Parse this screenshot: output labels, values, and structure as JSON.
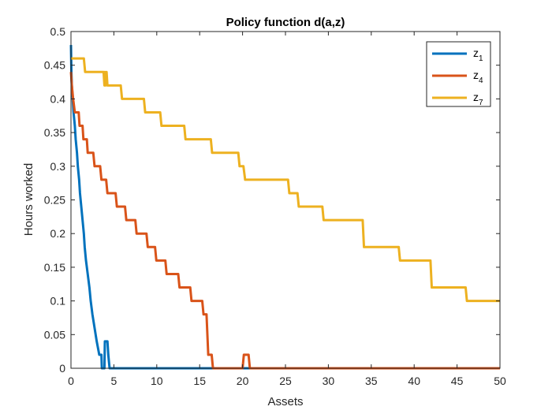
{
  "chart_data": {
    "type": "line",
    "title": "Policy function d(a,z)",
    "xlabel": "Assets",
    "ylabel": "Hours worked",
    "xlim": [
      0,
      50
    ],
    "ylim": [
      0,
      0.5
    ],
    "xticks": [
      0,
      5,
      10,
      15,
      20,
      25,
      30,
      35,
      40,
      45,
      50
    ],
    "xtick_labels": [
      "0",
      "5",
      "10",
      "15",
      "20",
      "25",
      "30",
      "35",
      "40",
      "45",
      "50"
    ],
    "yticks": [
      0,
      0.05,
      0.1,
      0.15,
      0.2,
      0.25,
      0.3,
      0.35,
      0.4,
      0.45,
      0.5
    ],
    "ytick_labels": [
      "0",
      "0.05",
      "0.1",
      "0.15",
      "0.2",
      "0.25",
      "0.3",
      "0.35",
      "0.4",
      "0.45",
      "0.5"
    ],
    "grid": false,
    "legend_position": "top-right",
    "series": [
      {
        "name": "z",
        "subscript": "1",
        "color": "#0072BD",
        "points": [
          [
            0,
            0.48
          ],
          [
            0.05,
            0.44
          ],
          [
            0.1,
            0.42
          ],
          [
            0.2,
            0.4
          ],
          [
            0.3,
            0.38
          ],
          [
            0.45,
            0.36
          ],
          [
            0.55,
            0.34
          ],
          [
            0.7,
            0.32
          ],
          [
            0.8,
            0.3
          ],
          [
            0.95,
            0.28
          ],
          [
            1.05,
            0.26
          ],
          [
            1.2,
            0.24
          ],
          [
            1.35,
            0.22
          ],
          [
            1.5,
            0.2
          ],
          [
            1.6,
            0.18
          ],
          [
            1.75,
            0.16
          ],
          [
            1.95,
            0.14
          ],
          [
            2.15,
            0.12
          ],
          [
            2.3,
            0.1
          ],
          [
            2.5,
            0.08
          ],
          [
            2.75,
            0.06
          ],
          [
            3.0,
            0.04
          ],
          [
            3.3,
            0.02
          ],
          [
            3.55,
            0.02
          ],
          [
            3.6,
            0
          ],
          [
            3.9,
            0
          ],
          [
            3.95,
            0.04
          ],
          [
            4.25,
            0.04
          ],
          [
            4.35,
            0.02
          ],
          [
            4.5,
            0
          ],
          [
            50,
            0
          ]
        ]
      },
      {
        "name": "z",
        "subscript": "4",
        "color": "#D95319",
        "points": [
          [
            0,
            0.44
          ],
          [
            0.1,
            0.42
          ],
          [
            0.25,
            0.4
          ],
          [
            0.45,
            0.38
          ],
          [
            0.9,
            0.38
          ],
          [
            1.0,
            0.36
          ],
          [
            1.35,
            0.36
          ],
          [
            1.45,
            0.34
          ],
          [
            1.85,
            0.34
          ],
          [
            1.95,
            0.32
          ],
          [
            2.6,
            0.32
          ],
          [
            2.75,
            0.3
          ],
          [
            3.4,
            0.3
          ],
          [
            3.55,
            0.28
          ],
          [
            4.1,
            0.28
          ],
          [
            4.25,
            0.26
          ],
          [
            5.2,
            0.26
          ],
          [
            5.35,
            0.24
          ],
          [
            6.3,
            0.24
          ],
          [
            6.45,
            0.22
          ],
          [
            7.5,
            0.22
          ],
          [
            7.65,
            0.2
          ],
          [
            8.8,
            0.2
          ],
          [
            8.95,
            0.18
          ],
          [
            9.8,
            0.18
          ],
          [
            9.95,
            0.16
          ],
          [
            11.0,
            0.16
          ],
          [
            11.15,
            0.14
          ],
          [
            12.5,
            0.14
          ],
          [
            12.65,
            0.12
          ],
          [
            13.9,
            0.12
          ],
          [
            14.05,
            0.1
          ],
          [
            15.3,
            0.1
          ],
          [
            15.45,
            0.08
          ],
          [
            15.8,
            0.08
          ],
          [
            16.0,
            0.02
          ],
          [
            16.4,
            0.02
          ],
          [
            16.55,
            0
          ],
          [
            20.0,
            0
          ],
          [
            20.15,
            0.02
          ],
          [
            20.7,
            0.02
          ],
          [
            20.85,
            0
          ],
          [
            50,
            0
          ]
        ]
      },
      {
        "name": "z",
        "subscript": "7",
        "color": "#EDB120",
        "points": [
          [
            0,
            0.46
          ],
          [
            1.5,
            0.46
          ],
          [
            1.65,
            0.44
          ],
          [
            3.8,
            0.44
          ],
          [
            3.9,
            0.42
          ],
          [
            3.95,
            0.44
          ],
          [
            4.05,
            0.42
          ],
          [
            4.15,
            0.44
          ],
          [
            4.25,
            0.42
          ],
          [
            5.8,
            0.42
          ],
          [
            5.95,
            0.4
          ],
          [
            8.5,
            0.4
          ],
          [
            8.65,
            0.38
          ],
          [
            10.4,
            0.38
          ],
          [
            10.55,
            0.36
          ],
          [
            13.2,
            0.36
          ],
          [
            13.35,
            0.34
          ],
          [
            16.3,
            0.34
          ],
          [
            16.45,
            0.32
          ],
          [
            19.5,
            0.32
          ],
          [
            19.65,
            0.3
          ],
          [
            20.1,
            0.3
          ],
          [
            20.3,
            0.28
          ],
          [
            25.3,
            0.28
          ],
          [
            25.45,
            0.26
          ],
          [
            26.4,
            0.26
          ],
          [
            26.55,
            0.24
          ],
          [
            29.3,
            0.24
          ],
          [
            29.45,
            0.22
          ],
          [
            34.0,
            0.22
          ],
          [
            34.15,
            0.18
          ],
          [
            38.2,
            0.18
          ],
          [
            38.35,
            0.16
          ],
          [
            41.9,
            0.16
          ],
          [
            42.05,
            0.12
          ],
          [
            46.0,
            0.12
          ],
          [
            46.15,
            0.1
          ],
          [
            50,
            0.1
          ]
        ]
      }
    ]
  }
}
